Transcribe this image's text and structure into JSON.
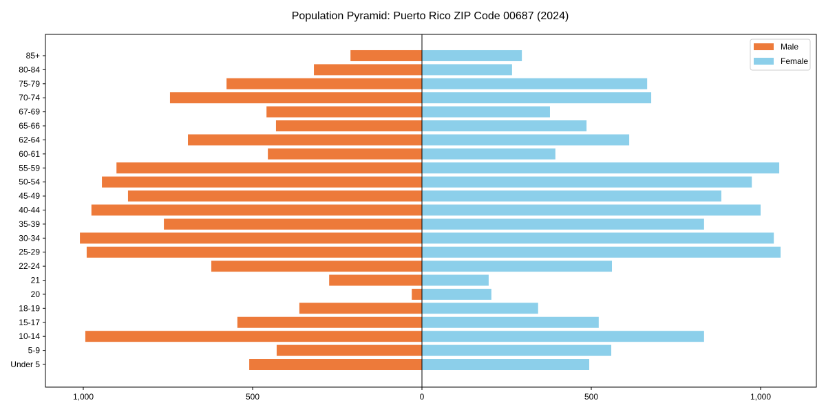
{
  "chart_data": {
    "type": "bar",
    "orientation": "horizontal-diverging",
    "title": "Population Pyramid: Puerto Rico ZIP Code 00687 (2024)",
    "xlabel": "",
    "ylabel": "",
    "xlim": [
      -1120,
      1160
    ],
    "x_ticks": [
      -1000,
      -500,
      0,
      500,
      1000
    ],
    "x_tick_labels": [
      "1,000",
      "500",
      "0",
      "500",
      "1,000"
    ],
    "legend_position": "top-right",
    "categories": [
      "Under 5",
      "5-9",
      "10-14",
      "15-17",
      "18-19",
      "20",
      "21",
      "22-24",
      "25-29",
      "30-34",
      "35-39",
      "40-44",
      "45-49",
      "50-54",
      "55-59",
      "60-61",
      "62-64",
      "65-66",
      "67-69",
      "70-74",
      "75-79",
      "80-84",
      "85+"
    ],
    "series": [
      {
        "name": "Male",
        "color": "#ed7a3a",
        "values": [
          510,
          429,
          994,
          545,
          362,
          30,
          274,
          622,
          990,
          1010,
          762,
          976,
          868,
          945,
          902,
          455,
          691,
          431,
          459,
          744,
          577,
          319,
          211
        ]
      },
      {
        "name": "Female",
        "color": "#8ccfea",
        "values": [
          494,
          559,
          833,
          522,
          343,
          205,
          197,
          561,
          1059,
          1039,
          833,
          1000,
          884,
          974,
          1055,
          394,
          612,
          486,
          378,
          677,
          665,
          266,
          295
        ]
      }
    ]
  }
}
